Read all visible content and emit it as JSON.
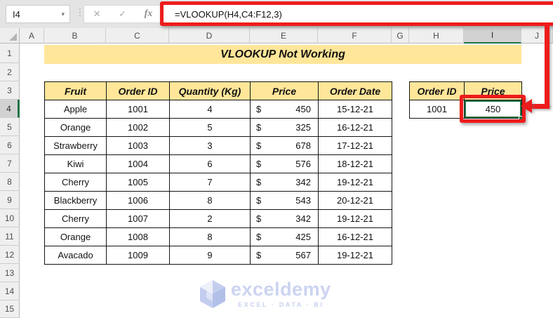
{
  "formula_bar": {
    "cell_reference": "I4",
    "name_box_caret": "▾",
    "separator_dots": "⋮",
    "cancel_icon": "✕",
    "enter_icon": "✓",
    "fx_label": "fx",
    "formula": "=VLOOKUP(H4,C4:F12,3)"
  },
  "sheet": {
    "columns": [
      "A",
      "B",
      "C",
      "D",
      "E",
      "F",
      "G",
      "H",
      "I",
      "J"
    ],
    "selected_column": "I",
    "rows": [
      "1",
      "2",
      "3",
      "4",
      "5",
      "6",
      "7",
      "8",
      "9",
      "10",
      "11",
      "12",
      "13",
      "14",
      "15"
    ],
    "selected_row": "4",
    "title_banner": "VLOOKUP Not Working"
  },
  "main_table": {
    "headers": [
      "Fruit",
      "Order ID",
      "Quantity (Kg)",
      "Price",
      "Order Date"
    ],
    "currency_symbol": "$",
    "rows": [
      {
        "fruit": "Apple",
        "order_id": "1001",
        "quantity": "4",
        "price": "450",
        "date": "15-12-21"
      },
      {
        "fruit": "Orange",
        "order_id": "1002",
        "quantity": "5",
        "price": "325",
        "date": "16-12-21"
      },
      {
        "fruit": "Strawberry",
        "order_id": "1003",
        "quantity": "3",
        "price": "678",
        "date": "17-12-21"
      },
      {
        "fruit": "Kiwi",
        "order_id": "1004",
        "quantity": "6",
        "price": "576",
        "date": "18-12-21"
      },
      {
        "fruit": "Cherry",
        "order_id": "1005",
        "quantity": "7",
        "price": "342",
        "date": "19-12-21"
      },
      {
        "fruit": "Blackberry",
        "order_id": "1006",
        "quantity": "8",
        "price": "543",
        "date": "20-12-21"
      },
      {
        "fruit": "Cherry",
        "order_id": "1007",
        "quantity": "2",
        "price": "342",
        "date": "19-12-21"
      },
      {
        "fruit": "Orange",
        "order_id": "1008",
        "quantity": "8",
        "price": "425",
        "date": "16-12-21"
      },
      {
        "fruit": "Avacado",
        "order_id": "1009",
        "quantity": "9",
        "price": "567",
        "date": "19-12-21"
      }
    ]
  },
  "lookup_table": {
    "headers": [
      "Order ID",
      "Price"
    ],
    "order_id": "1001",
    "price": "450"
  },
  "watermark": {
    "brand": "exceldemy",
    "tagline": "EXCEL · DATA · BI"
  },
  "colors": {
    "accent_yellow": "#FFE699",
    "annotation_red": "#EE1C1C",
    "selection_green": "#217346"
  }
}
